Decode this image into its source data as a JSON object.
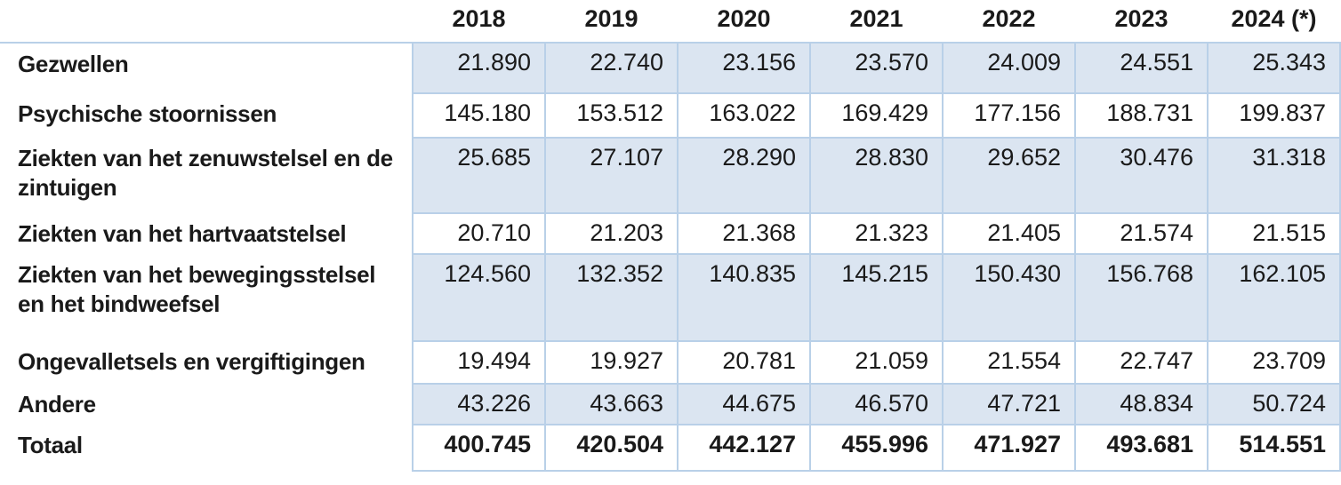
{
  "chart_data": {
    "type": "table",
    "columns": [
      "2018",
      "2019",
      "2020",
      "2021",
      "2022",
      "2023",
      "2024 (*)"
    ],
    "rows": [
      {
        "label": "Gezwellen",
        "values": [
          "21.890",
          "22.740",
          "23.156",
          "23.570",
          "24.009",
          "24.551",
          "25.343"
        ],
        "shaded": true,
        "is_total": false
      },
      {
        "label": "Psychische stoornissen",
        "values": [
          "145.180",
          "153.512",
          "163.022",
          "169.429",
          "177.156",
          "188.731",
          "199.837"
        ],
        "shaded": false,
        "is_total": false
      },
      {
        "label": "Ziekten van het zenuwstelsel en de zintuigen",
        "values": [
          "25.685",
          "27.107",
          "28.290",
          "28.830",
          "29.652",
          "30.476",
          "31.318"
        ],
        "shaded": true,
        "is_total": false
      },
      {
        "label": "Ziekten van het hartvaatstelsel",
        "values": [
          "20.710",
          "21.203",
          "21.368",
          "21.323",
          "21.405",
          "21.574",
          "21.515"
        ],
        "shaded": false,
        "is_total": false
      },
      {
        "label": "Ziekten van het bewegingsstelsel en het bindweefsel",
        "values": [
          "124.560",
          "132.352",
          "140.835",
          "145.215",
          "150.430",
          "156.768",
          "162.105"
        ],
        "shaded": true,
        "is_total": false
      },
      {
        "label": "Ongevalletsels en vergiftigingen",
        "values": [
          "19.494",
          "19.927",
          "20.781",
          "21.059",
          "21.554",
          "22.747",
          "23.709"
        ],
        "shaded": false,
        "is_total": false
      },
      {
        "label": "Andere",
        "values": [
          "43.226",
          "43.663",
          "44.675",
          "46.570",
          "47.721",
          "48.834",
          "50.724"
        ],
        "shaded": true,
        "is_total": false
      },
      {
        "label": "Totaal",
        "values": [
          "400.745",
          "420.504",
          "442.127",
          "455.996",
          "471.927",
          "493.681",
          "514.551"
        ],
        "shaded": false,
        "is_total": true
      }
    ],
    "layout": {
      "number_format": "dot as thousands separator",
      "striped_rows": "odd data rows shaded light blue",
      "bold_rows": [
        "Totaal"
      ]
    }
  },
  "colors": {
    "shaded_row_bg": "#dbe5f1",
    "plain_row_bg": "#ffffff",
    "cell_border": "#b9d0e8",
    "text": "#1a1a1a"
  }
}
